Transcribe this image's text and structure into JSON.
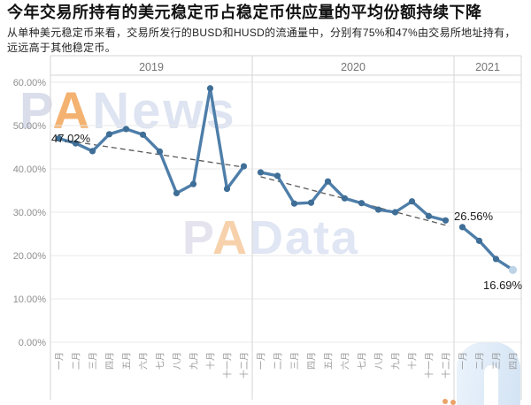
{
  "header": {
    "title": "今年交易所持有的美元稳定币占稳定币供应量的平均份额持续下降",
    "subtitle": "从单种美元稳定币来看，交易所发行的BUSD和HUSD的流通量中，分别有75%和47%由交易所地址持有，远远高于其他稳定币。"
  },
  "watermarks": {
    "panews": {
      "p": "P",
      "a": "A",
      "rest": "News"
    },
    "padata": {
      "p": "P",
      "a": "A",
      "rest": "Data"
    }
  },
  "colors": {
    "line": "#4e7ea9",
    "marker": "#3f6e97",
    "last_point": "#bdd3e6",
    "trend": "#5a5a5a",
    "grid": "#eaeaea",
    "frame": "#d5d5d5",
    "axis_text": "#8f8f8f",
    "year_text": "#757575",
    "month_text": "#999999",
    "annotation_text": "#1a1a1a"
  },
  "chart_data": {
    "type": "line",
    "title": "今年交易所持有的美元稳定币占稳定币供应量的平均份额持续下降",
    "ylabel": "",
    "xlabel": "",
    "ylim": [
      0,
      60
    ],
    "grid": true,
    "legend_position": "none",
    "y_ticks": [
      "60.00%",
      "50.00%",
      "40.00%",
      "30.00%",
      "20.00%",
      "10.00%",
      "0.00%"
    ],
    "panels": [
      {
        "year": "2019",
        "months": [
          "一月",
          "二月",
          "三月",
          "四月",
          "五月",
          "六月",
          "七月",
          "八月",
          "九月",
          "十月",
          "十一月",
          "十二月"
        ],
        "values": [
          47.02,
          45.9,
          44.1,
          48.0,
          49.2,
          47.9,
          44.0,
          34.4,
          36.5,
          58.6,
          35.4,
          40.6
        ],
        "trend": {
          "start": 46.8,
          "end": 40.4
        }
      },
      {
        "year": "2020",
        "months": [
          "一月",
          "二月",
          "三月",
          "四月",
          "五月",
          "六月",
          "七月",
          "八月",
          "九月",
          "十月",
          "十一月",
          "十二月"
        ],
        "values": [
          39.2,
          38.4,
          32.0,
          32.2,
          37.1,
          33.2,
          32.1,
          30.6,
          30.0,
          32.5,
          29.1,
          28.1
        ],
        "trend": {
          "start": 38.2,
          "end": 26.8
        }
      },
      {
        "year": "2021",
        "months": [
          "一月",
          "二月",
          "三月",
          "四月"
        ],
        "values": [
          26.56,
          23.4,
          19.2,
          16.69
        ],
        "trend": null
      }
    ],
    "annotations": [
      {
        "text": "47.02%",
        "x": 58,
        "y": 161
      },
      {
        "text": "26.56%",
        "x": 513,
        "y": 249
      },
      {
        "text": "16.69%",
        "x": 546,
        "y": 327
      }
    ],
    "highlight_last_point": true
  }
}
